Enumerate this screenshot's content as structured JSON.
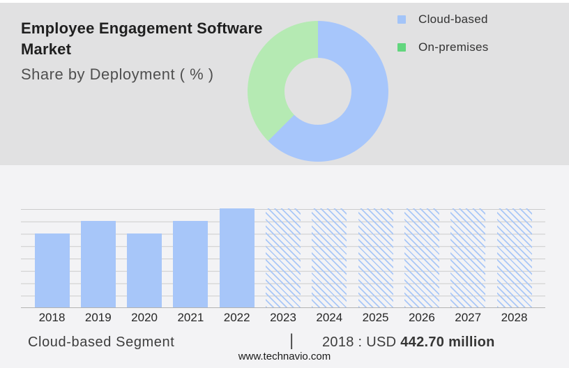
{
  "header": {
    "title": "Employee Engagement Software Market",
    "subtitle": "Share by Deployment ( % )"
  },
  "legend": {
    "position": "right",
    "items": [
      {
        "label": "Cloud-based",
        "color": "#a3c4f8"
      },
      {
        "label": "On-premises",
        "color": "#62d67e"
      }
    ]
  },
  "chart_data": [
    {
      "type": "pie",
      "subtype": "donut",
      "title": "Share by Deployment ( % )",
      "labels": [
        "Cloud-based",
        "On-premises"
      ],
      "values": [
        62.5,
        37.5
      ],
      "unit": "%",
      "colors": [
        "#a7c6fb",
        "#b5eab3"
      ],
      "start_angle": "top, clockwise, Cloud-based first",
      "legend_position": "right",
      "note": "slice percentages estimated from arc angles; no numeric labels shown"
    },
    {
      "type": "bar",
      "categories": [
        "2018",
        "2019",
        "2020",
        "2021",
        "2022",
        "2023",
        "2024",
        "2025",
        "2026",
        "2027",
        "2028"
      ],
      "values": [
        6,
        7,
        6,
        7,
        8,
        8,
        8,
        8,
        8,
        8,
        8
      ],
      "forecast": [
        false,
        false,
        false,
        false,
        false,
        true,
        true,
        true,
        true,
        true,
        true
      ],
      "ylim": [
        0,
        8
      ],
      "xlabel": "",
      "ylabel": "",
      "grid": true,
      "gridline_interval": 1,
      "bar_color": "#a7c6f9",
      "forecast_style": "diagonal-hatch",
      "known_point": {
        "category": "2018",
        "label": "USD 442.70 million"
      },
      "note": "heights estimated in gridline units; 2023-2028 are hatched forecast bars at full height"
    }
  ],
  "caption": {
    "segment_label": "Cloud-based Segment",
    "separator": "|",
    "stat_prefix": "2018 : USD ",
    "stat_value_bold": "442.70 million"
  },
  "footer": {
    "website": "www.technavio.com"
  },
  "colors": {
    "top-bg": "#e1e1e2",
    "bottom-bg": "#f3f3f5",
    "title": "#1f1f1f",
    "subtitle": "#4f4f4f",
    "text": "#3d3d3d",
    "grid": "#cbcbcb",
    "axis": "#b3b3b3",
    "bar-blue": "#a7c6f9",
    "hatch-blue": "#a9c7f7",
    "donut-blue": "#a7c6fb",
    "donut-green": "#b5eab3",
    "legend-blue": "#a3c4f8",
    "legend-green": "#62d67e"
  }
}
